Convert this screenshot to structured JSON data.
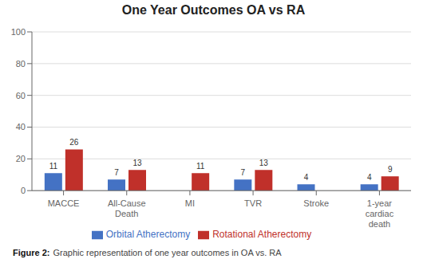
{
  "chart_data": {
    "type": "bar",
    "title": "One Year Outcomes OA vs RA",
    "categories": [
      "MACCE",
      "All-Cause\nDeath",
      "MI",
      "TVR",
      "Stroke",
      "1-year\ncardiac\ndeath"
    ],
    "series": [
      {
        "name": "Orbital Atherectomy",
        "color": "#4472C4",
        "values": [
          11,
          7,
          0,
          7,
          4,
          4
        ]
      },
      {
        "name": "Rotational Atherectomy",
        "color": "#C0302A",
        "values": [
          26,
          13,
          11,
          13,
          0,
          9
        ]
      }
    ],
    "ylim": [
      0,
      100
    ],
    "yticks": [
      0,
      20,
      40,
      60,
      80,
      100
    ],
    "grid": true,
    "legend": "bottom",
    "data_labels": true,
    "annotations": [
      "Figure 2:",
      "Graphic representation of one year outcomes in OA vs. RA"
    ]
  }
}
